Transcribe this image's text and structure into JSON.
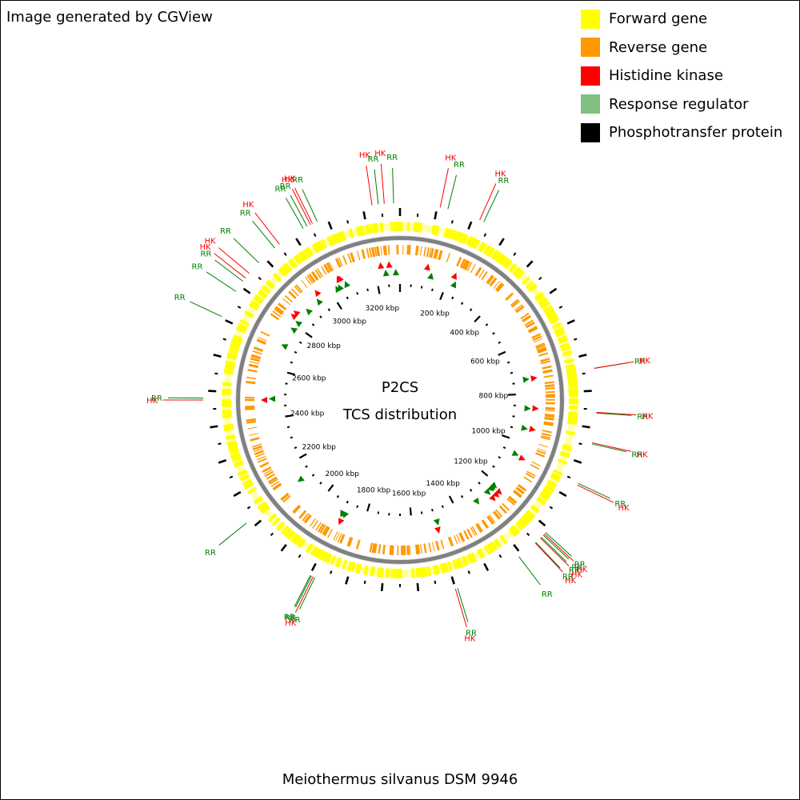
{
  "credit": "Image generated by CGView",
  "legend": [
    {
      "label": "Forward gene",
      "color": "#ffff00"
    },
    {
      "label": "Reverse gene",
      "color": "#ff9900"
    },
    {
      "label": "Histidine kinase",
      "color": "#ff0000"
    },
    {
      "label": "Response regulator",
      "color": "#80c080"
    },
    {
      "label": "Phosphotransfer protein",
      "color": "#000000"
    }
  ],
  "map": {
    "title_line1": "P2CS",
    "title_line2": "TCS distribution",
    "genome_length_kbp": 3300,
    "tick_labels": [
      "200 kbp",
      "400 kbp",
      "600 kbp",
      "800 kbp",
      "1000 kbp",
      "1200 kbp",
      "1400 kbp",
      "1600 kbp",
      "1800 kbp",
      "2000 kbp",
      "2200 kbp",
      "2400 kbp",
      "2600 kbp",
      "2800 kbp",
      "3000 kbp",
      "3200 kbp"
    ],
    "colors": {
      "forward": "#ffff00",
      "reverse": "#ff9900",
      "hk": "#ff0000",
      "rr_label": "#007f00",
      "rr_marker": "#008000",
      "backbone": "#808080"
    },
    "labels": [
      {
        "kbp": 3225,
        "text": "HK",
        "type": "hk"
      },
      {
        "kbp": 3242,
        "text": "RR",
        "type": "rr"
      },
      {
        "kbp": 3258,
        "text": "HK",
        "type": "hk"
      },
      {
        "kbp": 3283,
        "text": "RR",
        "type": "rr"
      },
      {
        "kbp": 108,
        "text": "HK",
        "type": "hk"
      },
      {
        "kbp": 129,
        "text": "RR",
        "type": "rr"
      },
      {
        "kbp": 219,
        "text": "HK",
        "type": "hk"
      },
      {
        "kbp": 231,
        "text": "RR",
        "type": "rr"
      },
      {
        "kbp": 3072,
        "text": "RR",
        "type": "rr"
      },
      {
        "kbp": 3058,
        "text": "HK",
        "type": "hk"
      },
      {
        "kbp": 3052,
        "text": "HK",
        "type": "hk"
      },
      {
        "kbp": 3042,
        "text": "RR",
        "type": "rr"
      },
      {
        "kbp": 3030,
        "text": "RR",
        "type": "rr"
      },
      {
        "kbp": 2954,
        "text": "HK",
        "type": "hk"
      },
      {
        "kbp": 2938,
        "text": "RR",
        "type": "rr"
      },
      {
        "kbp": 2880,
        "text": "RR",
        "type": "rr"
      },
      {
        "kbp": 2842,
        "text": "HK",
        "type": "hk"
      },
      {
        "kbp": 2826,
        "text": "HK",
        "type": "hk"
      },
      {
        "kbp": 2815,
        "text": "RR",
        "type": "rr"
      },
      {
        "kbp": 2782,
        "text": "RR",
        "type": "rr"
      },
      {
        "kbp": 2705,
        "text": "RR",
        "type": "rr"
      },
      {
        "kbp": 2480,
        "text": "RR",
        "type": "rr"
      },
      {
        "kbp": 2475,
        "text": "HK",
        "type": "hk"
      },
      {
        "kbp": 2120,
        "text": "RR",
        "type": "rr"
      },
      {
        "kbp": 1898,
        "text": "RR",
        "type": "rr"
      },
      {
        "kbp": 1895,
        "text": "RR",
        "type": "rr"
      },
      {
        "kbp": 1890,
        "text": "HK",
        "type": "hk"
      },
      {
        "kbp": 1885,
        "text": "RR",
        "type": "rr"
      },
      {
        "kbp": 1500,
        "text": "HK",
        "type": "hk"
      },
      {
        "kbp": 1494,
        "text": "RR",
        "type": "rr"
      },
      {
        "kbp": 1309,
        "text": "RR",
        "type": "rr"
      },
      {
        "kbp": 1252,
        "text": "HK",
        "type": "hk"
      },
      {
        "kbp": 1250,
        "text": "RR",
        "type": "rr"
      },
      {
        "kbp": 1233,
        "text": "HK",
        "type": "hk"
      },
      {
        "kbp": 1230,
        "text": "RR",
        "type": "rr"
      },
      {
        "kbp": 1222,
        "text": "RR",
        "type": "rr"
      },
      {
        "kbp": 1218,
        "text": "HK",
        "type": "hk"
      },
      {
        "kbp": 1213,
        "text": "RR",
        "type": "rr"
      },
      {
        "kbp": 1060,
        "text": "HK",
        "type": "hk"
      },
      {
        "kbp": 1055,
        "text": "RR",
        "type": "rr"
      },
      {
        "kbp": 943,
        "text": "RR",
        "type": "rr"
      },
      {
        "kbp": 940,
        "text": "HK",
        "type": "hk"
      },
      {
        "kbp": 860,
        "text": "RR",
        "type": "rr"
      },
      {
        "kbp": 858,
        "text": "HK",
        "type": "hk"
      },
      {
        "kbp": 740,
        "text": "RR",
        "type": "rr"
      },
      {
        "kbp": 740,
        "text": "HK",
        "type": "hk"
      }
    ]
  },
  "genome_name": "Meiothermus silvanus DSM 9946"
}
